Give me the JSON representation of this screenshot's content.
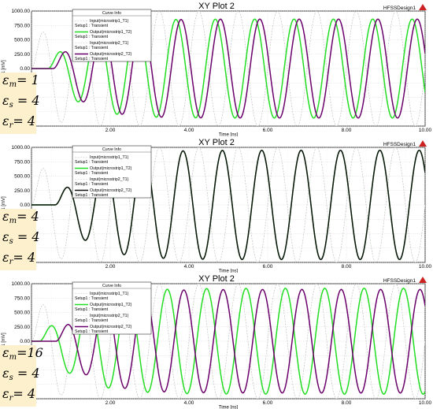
{
  "panels": [
    {
      "title": "XY Plot 2",
      "design": "HFSSDesign1",
      "xlabel": "Time [ns]",
      "ylabel": "Y1 [mV]",
      "legend": {
        "header": "Curve Info",
        "entries": [
          {
            "line1": "Input(microstrip1_T1)",
            "line2": "Setup1 : Transient"
          },
          {
            "line1": "Output(microstrip1_T2)",
            "line2": "Setup1 : Transient"
          },
          {
            "line1": "Input(microstrip2_T1)",
            "line2": "Setup1 : Transient"
          },
          {
            "line1": "Output(microstrip2_T2)",
            "line2": "Setup1 : Transient"
          }
        ]
      },
      "params": [
        {
          "sym": "ε",
          "sub": "m",
          "value": "= 1"
        },
        {
          "sym": "ε",
          "sub": "s",
          "value": " = 4"
        },
        {
          "sym": "ε",
          "sub": "r",
          "value": "= 4"
        }
      ],
      "chart_data": {
        "type": "line",
        "xlim": [
          0,
          10
        ],
        "ylim": [
          -1000,
          1000
        ],
        "x_ticks": [
          "0.00",
          "2.00",
          "4.00",
          "6.00",
          "8.00",
          "10.00"
        ],
        "y_ticks": [
          "1000.00",
          "750.00",
          "500.00",
          "250.00",
          "0.00",
          "-250.00",
          "-500.00",
          "-750.00",
          "-1000.00"
        ],
        "signal_period_ns": 1.0,
        "series": [
          {
            "name": "Input(microstrip1_T1)",
            "color": "#c8c8c8",
            "amplitude": 1000,
            "delay_ns": 0.0,
            "rise_ns": 0.6
          },
          {
            "name": "Output(microstrip1_T2)",
            "color": "#22dd22",
            "amplitude": 860,
            "delay_ns": 0.42,
            "rise_ns": 1.5
          },
          {
            "name": "Input(microstrip2_T1)",
            "color": "#c8c8c8",
            "amplitude": 1000,
            "delay_ns": 0.0,
            "rise_ns": 0.6
          },
          {
            "name": "Output(microstrip2_T2)",
            "color": "#6a006a",
            "amplitude": 860,
            "delay_ns": 0.55,
            "rise_ns": 1.5
          }
        ]
      }
    },
    {
      "title": "XY Plot 2",
      "design": "HFSSDesign1",
      "xlabel": "Time [ns]",
      "ylabel": "Y1 [mV]",
      "legend": {
        "header": "Curve Info",
        "entries": [
          {
            "line1": "Input(microstrip1_T1)",
            "line2": "Setup1 : Transient"
          },
          {
            "line1": "Output(microstrip1_T2)",
            "line2": "Setup1 : Transient"
          },
          {
            "line1": "Input(microstrip2_T1)",
            "line2": "Setup1 : Transient"
          },
          {
            "line1": "Output(microstrip2_T2)",
            "line2": "Setup1 : Transient"
          }
        ]
      },
      "params": [
        {
          "sym": "ε",
          "sub": "m",
          "value": "= 4"
        },
        {
          "sym": "ε",
          "sub": "s",
          "value": " = 4"
        },
        {
          "sym": "ε",
          "sub": "r",
          "value": "= 4"
        }
      ],
      "chart_data": {
        "type": "line",
        "xlim": [
          0,
          10
        ],
        "ylim": [
          -1000,
          1000
        ],
        "x_ticks": [
          "0.00",
          "2.00",
          "4.00",
          "6.00",
          "8.00",
          "10.00"
        ],
        "y_ticks": [
          "1000.00",
          "750.00",
          "500.00",
          "250.00",
          "0.00",
          "-250.00",
          "-500.00",
          "-750.00",
          "-1000.00"
        ],
        "signal_period_ns": 1.0,
        "series": [
          {
            "name": "Input(microstrip1_T1)",
            "color": "#c8c8c8",
            "amplitude": 1000,
            "delay_ns": 0.0,
            "rise_ns": 0.6
          },
          {
            "name": "Output(microstrip1_T2)",
            "color": "#22dd22",
            "amplitude": 950,
            "delay_ns": 0.6,
            "rise_ns": 1.6
          },
          {
            "name": "Input(microstrip2_T1)",
            "color": "#c8c8c8",
            "amplitude": 1000,
            "delay_ns": 0.0,
            "rise_ns": 0.6
          },
          {
            "name": "Output(microstrip2_T2)",
            "color": "#111111",
            "amplitude": 950,
            "delay_ns": 0.6,
            "rise_ns": 1.6
          }
        ]
      }
    },
    {
      "title": "XY Plot 2",
      "design": "HFSSDesign1",
      "xlabel": "Time [ns]",
      "ylabel": "Y1 [mV]",
      "legend": {
        "header": "Curve Info",
        "entries": [
          {
            "line1": "Input(microstrip1_T1)",
            "line2": "Setup1 : Transient"
          },
          {
            "line1": "Output(microstrip1_T2)",
            "line2": "Setup1 : Transient"
          },
          {
            "line1": "Input(microstrip2_T1)",
            "line2": "Setup1 : Transient"
          },
          {
            "line1": "Output(microstrip2_T2)",
            "line2": "Setup1 : Transient"
          }
        ]
      },
      "params": [
        {
          "sym": "ε",
          "sub": "m",
          "value": "=16"
        },
        {
          "sym": "ε",
          "sub": "s",
          "value": " = 4"
        },
        {
          "sym": "ε",
          "sub": "r",
          "value": "= 4"
        }
      ],
      "chart_data": {
        "type": "line",
        "xlim": [
          0,
          10
        ],
        "ylim": [
          -1000,
          1000
        ],
        "x_ticks": [
          "0.00",
          "2.00",
          "4.00",
          "6.00",
          "8.00",
          "10.00"
        ],
        "y_ticks": [
          "1000.00",
          "750.00",
          "500.00",
          "250.00",
          "0.00",
          "-250.00",
          "-500.00",
          "-750.00",
          "-1000.00"
        ],
        "signal_period_ns": 1.0,
        "series": [
          {
            "name": "Input(microstrip1_T1)",
            "color": "#c8c8c8",
            "amplitude": 1000,
            "delay_ns": 0.0,
            "rise_ns": 0.6
          },
          {
            "name": "Output(microstrip1_T2)",
            "color": "#22dd22",
            "amplitude": 920,
            "delay_ns": 0.2,
            "rise_ns": 1.8
          },
          {
            "name": "Input(microstrip2_T1)",
            "color": "#c8c8c8",
            "amplitude": 1000,
            "delay_ns": 0.0,
            "rise_ns": 0.6
          },
          {
            "name": "Output(microstrip2_T2)",
            "color": "#6a006a",
            "amplitude": 900,
            "delay_ns": 0.62,
            "rise_ns": 1.6
          }
        ]
      }
    }
  ]
}
